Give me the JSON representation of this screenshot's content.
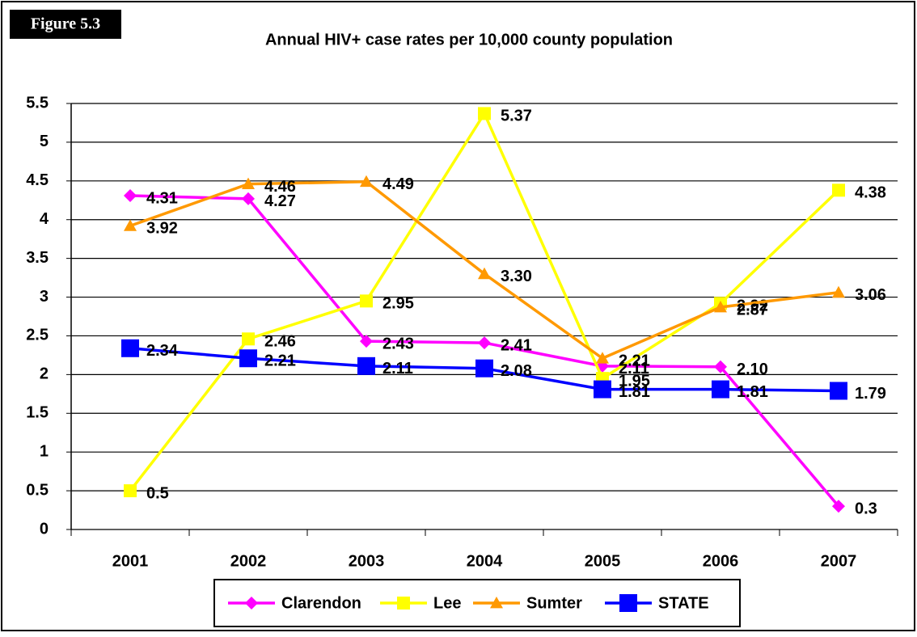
{
  "chart_data": {
    "type": "line",
    "figure_label": "Figure 5.3",
    "title": "Annual HIV+ case rates per 10,000 county population",
    "categories": [
      "2001",
      "2002",
      "2003",
      "2004",
      "2005",
      "2006",
      "2007"
    ],
    "series": [
      {
        "name": "Clarendon",
        "color": "#ff00ff",
        "marker": "diamond",
        "values": [
          4.31,
          4.27,
          2.43,
          2.41,
          2.11,
          2.1,
          0.3
        ],
        "value_labels": [
          "4.31",
          "4.27",
          "2.43",
          "2.41",
          "2.11",
          "2.10",
          "0.3"
        ]
      },
      {
        "name": "Lee",
        "color": "#ffff00",
        "marker": "square",
        "values": [
          0.5,
          2.46,
          2.95,
          5.37,
          1.95,
          2.92,
          4.38
        ],
        "value_labels": [
          "0.5",
          "2.46",
          "2.95",
          "5.37",
          "1.95",
          "2.92",
          "4.38"
        ]
      },
      {
        "name": "Sumter",
        "color": "#ff9900",
        "marker": "triangle",
        "values": [
          3.92,
          4.46,
          4.49,
          3.3,
          2.21,
          2.87,
          3.06
        ],
        "value_labels": [
          "3.92",
          "4.46",
          "4.49",
          "3.30",
          "2.21",
          "2.87",
          "3.06"
        ]
      },
      {
        "name": "STATE",
        "color": "#0000ff",
        "marker": "square",
        "values": [
          2.34,
          2.21,
          2.11,
          2.08,
          1.81,
          1.81,
          1.79
        ],
        "value_labels": [
          "2.34",
          "2.21",
          "2.11",
          "2.08",
          "1.81",
          "1.81",
          "1.79"
        ]
      }
    ],
    "ylim": [
      0,
      5.5
    ],
    "yticks": [
      0,
      0.5,
      1,
      1.5,
      2,
      2.5,
      3,
      3.5,
      4,
      4.5,
      5,
      5.5
    ],
    "grid": true,
    "legend": "bottom"
  }
}
